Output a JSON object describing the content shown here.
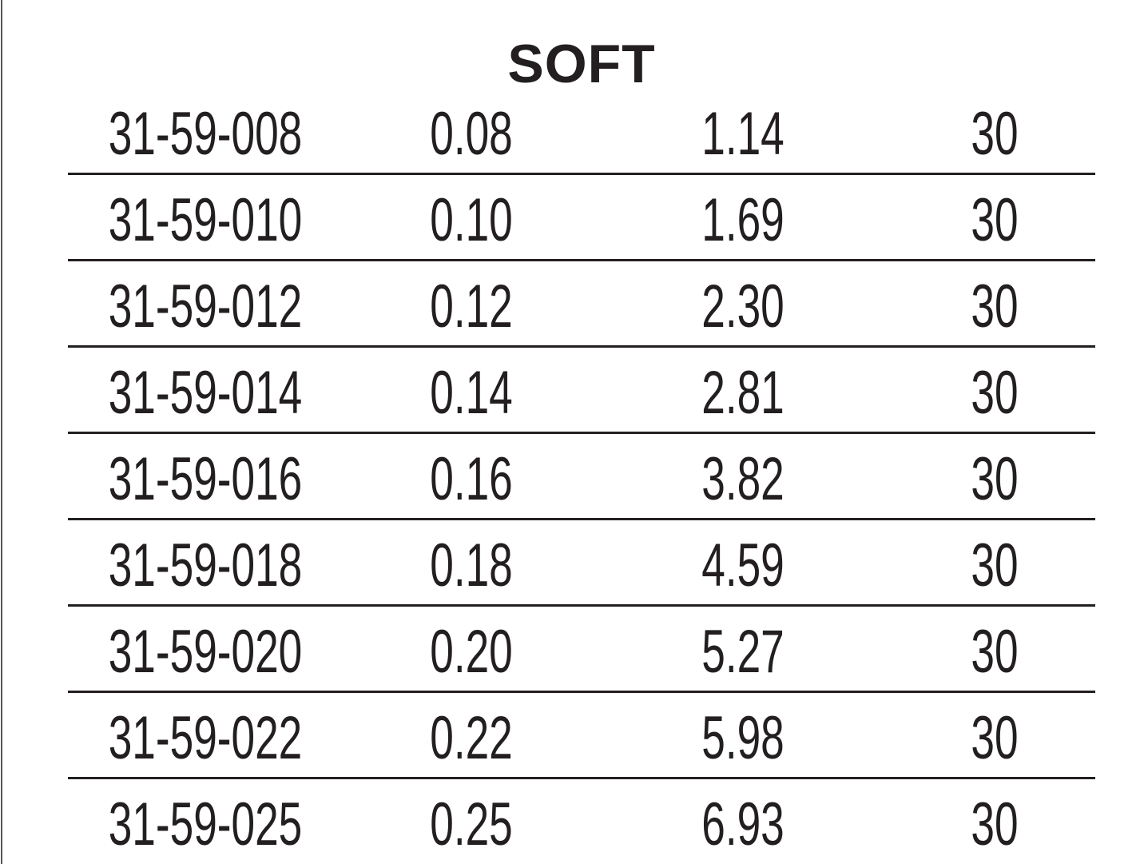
{
  "title": "SOFT",
  "table": {
    "rows": [
      [
        "31-59-008",
        "0.08",
        "1.14",
        "30"
      ],
      [
        "31-59-010",
        "0.10",
        "1.69",
        "30"
      ],
      [
        "31-59-012",
        "0.12",
        "2.30",
        "30"
      ],
      [
        "31-59-014",
        "0.14",
        "2.81",
        "30"
      ],
      [
        "31-59-016",
        "0.16",
        "3.82",
        "30"
      ],
      [
        "31-59-018",
        "0.18",
        "4.59",
        "30"
      ],
      [
        "31-59-020",
        "0.20",
        "5.27",
        "30"
      ],
      [
        "31-59-022",
        "0.22",
        "5.98",
        "30"
      ],
      [
        "31-59-025",
        "0.25",
        "6.93",
        "30"
      ]
    ]
  }
}
